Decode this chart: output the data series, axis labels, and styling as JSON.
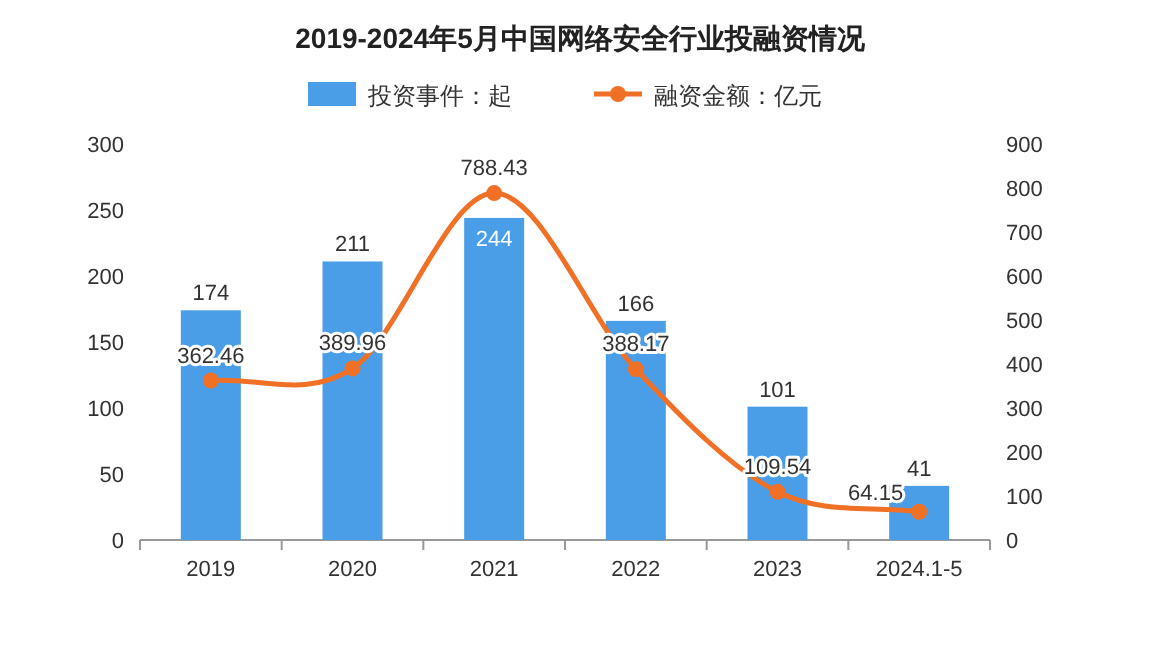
{
  "chart_data": {
    "type": "bar",
    "title": "2019-2024年5月中国网络安全行业投融资情况",
    "categories": [
      "2019",
      "2020",
      "2021",
      "2022",
      "2023",
      "2024.1-5"
    ],
    "series": [
      {
        "name": "投资事件：起",
        "color": "#4a9ee8",
        "values": [
          174,
          211,
          244,
          166,
          101,
          41
        ]
      },
      {
        "name": "融资金额：亿元",
        "type": "line",
        "axis": "y2",
        "color": "#f07026",
        "values": [
          362.46,
          389.96,
          788.43,
          388.17,
          109.54,
          64.15
        ]
      }
    ],
    "ylim": [
      0,
      300
    ],
    "yticks": [
      0,
      50,
      100,
      150,
      200,
      250,
      300
    ],
    "y2lim": [
      0,
      900
    ],
    "y2ticks": [
      0,
      100,
      200,
      300,
      400,
      500,
      600,
      700,
      800,
      900
    ],
    "data_labels": true,
    "legend": "top",
    "marker": "circle"
  }
}
